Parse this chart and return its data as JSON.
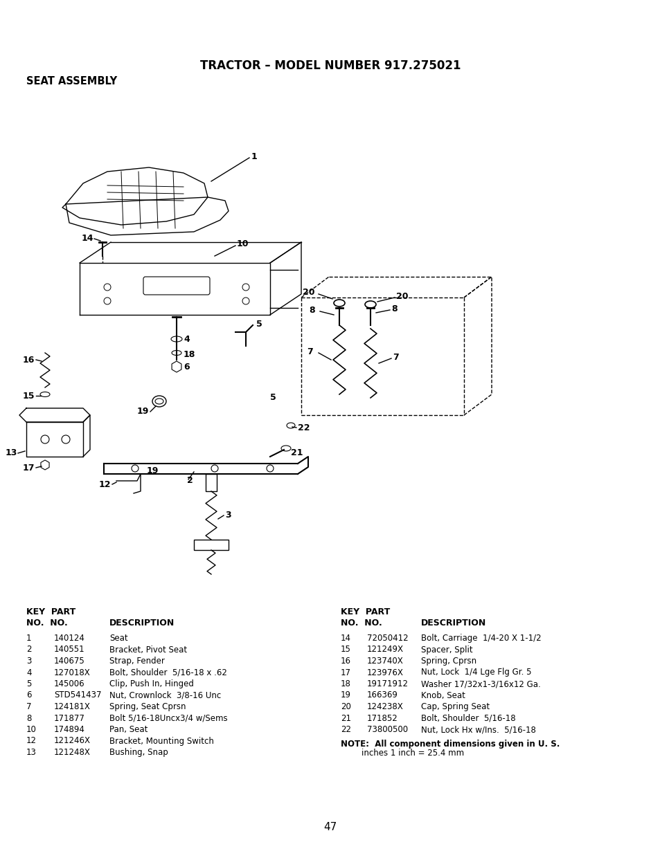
{
  "title_line1": "TRACTOR – MODEL NUMBER 917.275021",
  "title_line2": "SEAT ASSEMBLY",
  "page_number": "47",
  "background_color": "#ffffff",
  "text_color": "#000000",
  "parts_left": [
    [
      "1",
      "140124",
      "Seat"
    ],
    [
      "2",
      "140551",
      "Bracket, Pivot Seat"
    ],
    [
      "3",
      "140675",
      "Strap, Fender"
    ],
    [
      "4",
      "127018X",
      "Bolt, Shoulder  5/16-18 x .62"
    ],
    [
      "5",
      "145006",
      "Clip, Push In, Hinged"
    ],
    [
      "6",
      "STD541437",
      "Nut, Crownlock  3/8-16 Unc"
    ],
    [
      "7",
      "124181X",
      "Spring, Seat Cprsn"
    ],
    [
      "8",
      "171877",
      "Bolt 5/16-18Uncx3/4 w/Sems"
    ],
    [
      "10",
      "174894",
      "Pan, Seat"
    ],
    [
      "12",
      "121246X",
      "Bracket, Mounting Switch"
    ],
    [
      "13",
      "121248X",
      "Bushing, Snap"
    ]
  ],
  "parts_right": [
    [
      "14",
      "72050412",
      "Bolt, Carriage  1/4-20 X 1-1/2"
    ],
    [
      "15",
      "121249X",
      "Spacer, Split"
    ],
    [
      "16",
      "123740X",
      "Spring, Cprsn"
    ],
    [
      "17",
      "123976X",
      "Nut, Lock  1/4 Lge Flg Gr. 5"
    ],
    [
      "18",
      "19171912",
      "Washer 17/32x1-3/16x12 Ga."
    ],
    [
      "19",
      "166369",
      "Knob, Seat"
    ],
    [
      "20",
      "124238X",
      "Cap, Spring Seat"
    ],
    [
      "21",
      "171852",
      "Bolt, Shoulder  5/16-18"
    ],
    [
      "22",
      "73800500",
      "Nut, Lock Hx w/Ins.  5/16-18"
    ]
  ],
  "note_line1": "NOTE:  All component dimensions given in U. S.",
  "note_line2": "        inches 1 inch = 25.4 mm"
}
